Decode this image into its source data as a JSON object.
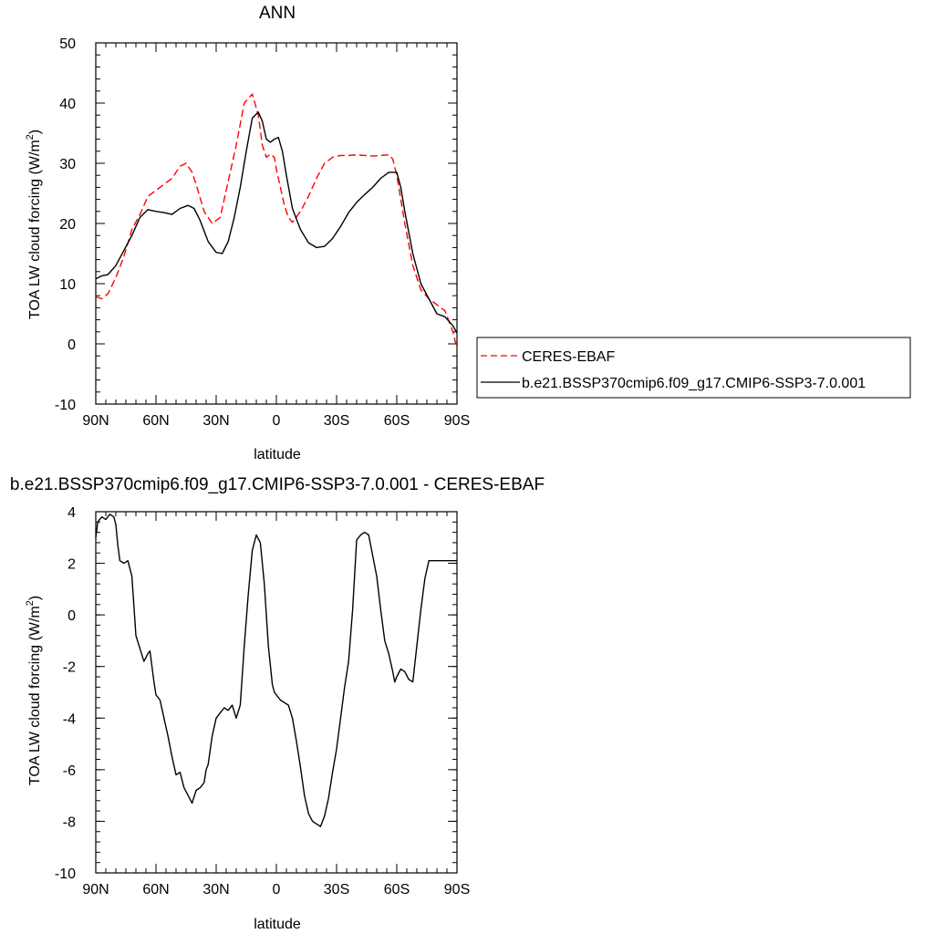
{
  "chart_data": [
    {
      "type": "line",
      "title": "ANN",
      "xlabel": "latitude",
      "ylabel_main": "TOA LW cloud forcing (W/m",
      "ylabel_sup": "2",
      "ylabel_close": ")",
      "xlim": [
        90,
        -90
      ],
      "ylim": [
        -10,
        50
      ],
      "x_ticks": [
        {
          "value": 90,
          "label": "90N"
        },
        {
          "value": 60,
          "label": "60N"
        },
        {
          "value": 30,
          "label": "30N"
        },
        {
          "value": 0,
          "label": "0"
        },
        {
          "value": -30,
          "label": "30S"
        },
        {
          "value": -60,
          "label": "60S"
        },
        {
          "value": -90,
          "label": "90S"
        }
      ],
      "y_ticks": [
        {
          "value": -10,
          "label": "-10"
        },
        {
          "value": 0,
          "label": "0"
        },
        {
          "value": 10,
          "label": "10"
        },
        {
          "value": 20,
          "label": "20"
        },
        {
          "value": 30,
          "label": "30"
        },
        {
          "value": 40,
          "label": "40"
        },
        {
          "value": 50,
          "label": "50"
        }
      ],
      "legend": {
        "placement": "right",
        "entries": [
          {
            "label": "CERES-EBAF",
            "color": "#ff0000",
            "dash": true
          },
          {
            "label": "b.e21.BSSP370cmip6.f09_g17.CMIP6-SSP3-7.0.001",
            "color": "#000000",
            "dash": false
          }
        ]
      },
      "series": [
        {
          "name": "CERES-EBAF",
          "color": "#ff0000",
          "dashed": true,
          "x": [
            90,
            87,
            84,
            80,
            76,
            72,
            68,
            64,
            60,
            56,
            52,
            48,
            45,
            42,
            40,
            36,
            32,
            28,
            24,
            20,
            16,
            12,
            9,
            7,
            5,
            3,
            1,
            0,
            -2,
            -4,
            -6,
            -8,
            -12,
            -16,
            -20,
            -24,
            -28,
            -32,
            -36,
            -40,
            -44,
            -48,
            -52,
            -56,
            -58,
            -60,
            -62,
            -64,
            -68,
            -72,
            -76,
            -80,
            -84,
            -88,
            -90
          ],
          "y": [
            7.8,
            7.5,
            8.3,
            11,
            14.5,
            19,
            21.5,
            24.5,
            25.5,
            26.5,
            27.5,
            29.5,
            30.0,
            28.5,
            26.5,
            22,
            20,
            21,
            27,
            33,
            40,
            41.5,
            38,
            33,
            31,
            31.5,
            31,
            29,
            26,
            23,
            21,
            20.2,
            22,
            24.5,
            27.5,
            30,
            31,
            31.3,
            31.3,
            31.4,
            31.3,
            31.2,
            31.3,
            31.4,
            30.7,
            28,
            24,
            20,
            13,
            9,
            7.5,
            6.5,
            5.5,
            2,
            -0.8
          ]
        },
        {
          "name": "b.e21.BSSP370cmip6.f09_g17.CMIP6-SSP3-7.0.001",
          "color": "#000000",
          "dashed": false,
          "x": [
            90,
            87,
            84,
            80,
            76,
            72,
            68,
            64,
            60,
            56,
            52,
            48,
            44,
            41,
            38,
            34,
            30,
            27,
            24,
            21,
            18,
            15,
            12,
            9,
            7,
            5,
            3,
            1,
            -1,
            -3,
            -5,
            -8,
            -12,
            -16,
            -20,
            -24,
            -28,
            -32,
            -36,
            -40,
            -44,
            -48,
            -52,
            -56,
            -60,
            -62,
            -64,
            -68,
            -72,
            -76,
            -80,
            -84,
            -88,
            -90
          ],
          "y": [
            10.8,
            11.3,
            11.5,
            13,
            15.5,
            18,
            21,
            22.3,
            22,
            21.8,
            21.5,
            22.5,
            23,
            22.5,
            20.5,
            17,
            15.2,
            15,
            17,
            21,
            26,
            32,
            37.5,
            38.5,
            37,
            34,
            33.5,
            34,
            34.3,
            32,
            28,
            22.5,
            19,
            16.8,
            16,
            16.2,
            17.5,
            19.5,
            21.8,
            23.5,
            24.8,
            26,
            27.5,
            28.5,
            28.5,
            26,
            22,
            15,
            10,
            7.5,
            5,
            4.5,
            3,
            1.8
          ]
        }
      ]
    },
    {
      "type": "line",
      "title": "b.e21.BSSP370cmip6.f09_g17.CMIP6-SSP3-7.0.001 - CERES-EBAF",
      "xlabel": "latitude",
      "ylabel_main": "TOA LW cloud forcing (W/m",
      "ylabel_sup": "2",
      "ylabel_close": ")",
      "xlim": [
        90,
        -90
      ],
      "ylim": [
        -10,
        4
      ],
      "x_ticks": [
        {
          "value": 90,
          "label": "90N"
        },
        {
          "value": 60,
          "label": "60N"
        },
        {
          "value": 30,
          "label": "30N"
        },
        {
          "value": 0,
          "label": "0"
        },
        {
          "value": -30,
          "label": "30S"
        },
        {
          "value": -60,
          "label": "60S"
        },
        {
          "value": -90,
          "label": "90S"
        }
      ],
      "y_ticks": [
        {
          "value": -10,
          "label": "-10"
        },
        {
          "value": -8,
          "label": "-8"
        },
        {
          "value": -6,
          "label": "-6"
        },
        {
          "value": -4,
          "label": "-4"
        },
        {
          "value": -2,
          "label": "-2"
        },
        {
          "value": 0,
          "label": "0"
        },
        {
          "value": 2,
          "label": "2"
        },
        {
          "value": 4,
          "label": "4"
        }
      ],
      "series": [
        {
          "name": "",
          "color": "#000000",
          "dashed": false,
          "x": [
            90,
            89,
            87,
            85,
            83,
            81,
            80,
            79,
            78,
            76,
            74,
            72,
            70,
            68,
            66,
            64,
            63,
            61,
            60,
            58,
            56,
            54,
            52,
            50,
            48,
            46,
            44,
            42,
            40,
            38,
            36,
            35,
            34,
            32,
            30,
            28,
            26,
            24,
            22,
            20,
            18,
            16,
            14,
            12,
            10,
            8,
            6,
            4,
            2,
            1,
            0,
            -2,
            -4,
            -6,
            -8,
            -10,
            -12,
            -14,
            -16,
            -18,
            -20,
            -22,
            -24,
            -26,
            -28,
            -30,
            -32,
            -34,
            -36,
            -38,
            -40,
            -42,
            -44,
            -46,
            -48,
            -50,
            -52,
            -54,
            -56,
            -58,
            -59,
            -60,
            -62,
            -64,
            -66,
            -68,
            -70,
            -72,
            -74,
            -76,
            -78,
            -80,
            -82,
            -84,
            -86,
            -88,
            -90
          ],
          "y": [
            3.0,
            3.6,
            3.8,
            3.7,
            3.9,
            3.8,
            3.5,
            2.7,
            2.1,
            2.0,
            2.1,
            1.5,
            -0.8,
            -1.3,
            -1.8,
            -1.5,
            -1.4,
            -2.6,
            -3.1,
            -3.3,
            -4.0,
            -4.7,
            -5.5,
            -6.2,
            -6.1,
            -6.7,
            -7.0,
            -7.3,
            -6.8,
            -6.7,
            -6.5,
            -6.0,
            -5.8,
            -4.7,
            -4.0,
            -3.8,
            -3.6,
            -3.7,
            -3.5,
            -4.0,
            -3.5,
            -1.2,
            0.8,
            2.5,
            3.1,
            2.8,
            1.2,
            -1.2,
            -2.7,
            -3.0,
            -3.1,
            -3.3,
            -3.4,
            -3.5,
            -4.0,
            -4.9,
            -5.9,
            -7.0,
            -7.7,
            -8.0,
            -8.1,
            -8.2,
            -7.8,
            -7.1,
            -6.1,
            -5.2,
            -4.0,
            -2.8,
            -1.8,
            0.2,
            2.9,
            3.1,
            3.2,
            3.1,
            2.3,
            1.5,
            0.2,
            -1.0,
            -1.5,
            -2.2,
            -2.6,
            -2.4,
            -2.1,
            -2.2,
            -2.5,
            -2.6,
            -1.2,
            0.2,
            1.4,
            2.1,
            2.1,
            2.1,
            2.1,
            2.1,
            2.1,
            2.1,
            2.1
          ]
        }
      ]
    }
  ]
}
